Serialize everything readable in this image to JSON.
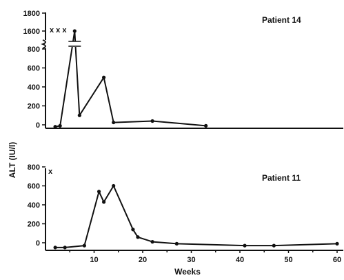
{
  "chart_data": [
    {
      "type": "line",
      "title": "Patient 14",
      "xlabel": "",
      "ylabel": "ALT (IU/l)",
      "xlim": [
        0,
        60
      ],
      "ylim": [
        0,
        1800
      ],
      "axis_break": "between 800 and 1600",
      "y_ticks": [
        "0",
        "200",
        "400",
        "600",
        "800",
        "1600",
        "1800"
      ],
      "marker": "x x x",
      "series": [
        {
          "x": [
            2,
            3,
            6,
            7,
            12,
            14,
            22,
            33
          ],
          "y": [
            -20,
            -10,
            1600,
            100,
            500,
            25,
            40,
            -10
          ]
        }
      ]
    },
    {
      "type": "line",
      "title": "Patient 11",
      "xlabel": "Weeks",
      "ylabel": "ALT (IU/l)",
      "xlim": [
        0,
        60
      ],
      "ylim": [
        0,
        800
      ],
      "y_ticks": [
        "0",
        "200",
        "400",
        "600",
        "800"
      ],
      "x_ticks": [
        "10",
        "20",
        "30",
        "40",
        "50",
        "60"
      ],
      "marker": "x",
      "series": [
        {
          "x": [
            2,
            4,
            8,
            11,
            12,
            14,
            18,
            19,
            22,
            27,
            41,
            47,
            60
          ],
          "y": [
            -50,
            -50,
            -30,
            540,
            430,
            600,
            140,
            60,
            10,
            -10,
            -30,
            -30,
            -10
          ]
        }
      ]
    }
  ],
  "shared": {
    "ylabel": "ALT (IU/l)",
    "xlabel": "Weeks"
  }
}
